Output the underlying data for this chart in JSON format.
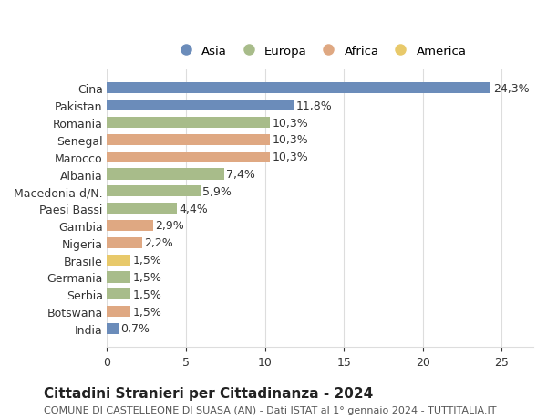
{
  "countries": [
    "Cina",
    "Pakistan",
    "Romania",
    "Senegal",
    "Marocco",
    "Albania",
    "Macedonia d/N.",
    "Paesi Bassi",
    "Gambia",
    "Nigeria",
    "Brasile",
    "Germania",
    "Serbia",
    "Botswana",
    "India"
  ],
  "values": [
    24.3,
    11.8,
    10.3,
    10.3,
    10.3,
    7.4,
    5.9,
    4.4,
    2.9,
    2.2,
    1.5,
    1.5,
    1.5,
    1.5,
    0.7
  ],
  "labels": [
    "24,3%",
    "11,8%",
    "10,3%",
    "10,3%",
    "10,3%",
    "7,4%",
    "5,9%",
    "4,4%",
    "2,9%",
    "2,2%",
    "1,5%",
    "1,5%",
    "1,5%",
    "1,5%",
    "0,7%"
  ],
  "continents": [
    "Asia",
    "Asia",
    "Europa",
    "Africa",
    "Africa",
    "Europa",
    "Europa",
    "Europa",
    "Africa",
    "Africa",
    "America",
    "Europa",
    "Europa",
    "Africa",
    "Asia"
  ],
  "continent_colors": {
    "Asia": "#6b8cba",
    "Europa": "#a8bc8a",
    "Africa": "#dfa882",
    "America": "#e8c96a"
  },
  "legend_order": [
    "Asia",
    "Europa",
    "Africa",
    "America"
  ],
  "title": "Cittadini Stranieri per Cittadinanza - 2024",
  "subtitle": "COMUNE DI CASTELLEONE DI SUASA (AN) - Dati ISTAT al 1° gennaio 2024 - TUTTITALIA.IT",
  "xlim": [
    0,
    27
  ],
  "xticks": [
    0,
    5,
    10,
    15,
    20,
    25
  ],
  "background_color": "#ffffff",
  "grid_color": "#dddddd",
  "bar_height": 0.65,
  "label_fontsize": 9,
  "tick_fontsize": 9,
  "title_fontsize": 11,
  "subtitle_fontsize": 8
}
